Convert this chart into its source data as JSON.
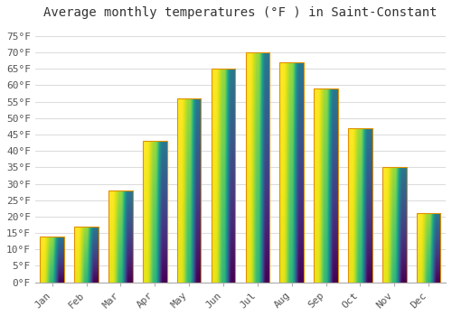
{
  "title": "Average monthly temperatures (°F ) in Saint-Constant",
  "months": [
    "Jan",
    "Feb",
    "Mar",
    "Apr",
    "May",
    "Jun",
    "Jul",
    "Aug",
    "Sep",
    "Oct",
    "Nov",
    "Dec"
  ],
  "values": [
    14,
    17,
    28,
    43,
    56,
    65,
    70,
    67,
    59,
    47,
    35,
    21
  ],
  "bar_color_bottom": "#F5A800",
  "bar_color_top": "#FFD966",
  "bar_edge_color": "#E09000",
  "ylim": [
    0,
    78
  ],
  "yticks": [
    0,
    5,
    10,
    15,
    20,
    25,
    30,
    35,
    40,
    45,
    50,
    55,
    60,
    65,
    70,
    75
  ],
  "ytick_labels": [
    "0°F",
    "5°F",
    "10°F",
    "15°F",
    "20°F",
    "25°F",
    "30°F",
    "35°F",
    "40°F",
    "45°F",
    "50°F",
    "55°F",
    "60°F",
    "65°F",
    "70°F",
    "75°F"
  ],
  "grid_color": "#dddddd",
  "bg_color": "#ffffff",
  "plot_bg_color": "#ffffff",
  "title_fontsize": 10,
  "tick_fontsize": 8,
  "font_family": "monospace"
}
